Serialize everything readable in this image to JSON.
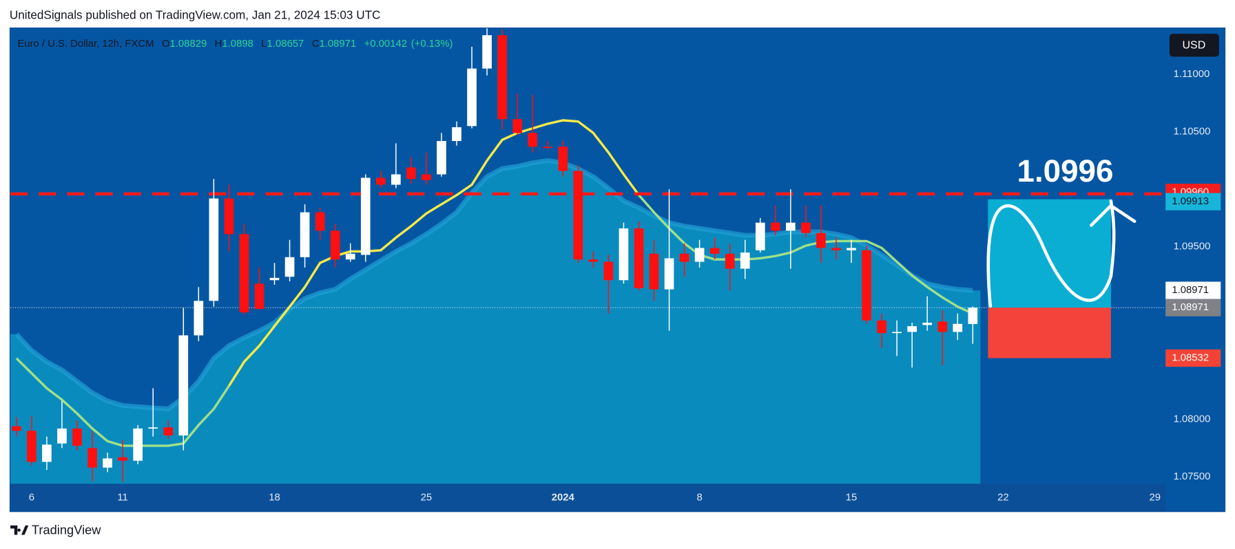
{
  "chart_data": {
    "type": "candlestick",
    "title": "UnitedSignals published on TradingView.com, Jan 21, 2024 15:03 UTC",
    "symbol": "Euro / U.S. Dollar, 12h, FXCM",
    "ohlc_letters": [
      "O",
      "H",
      "L",
      "C"
    ],
    "change": "+0.00142",
    "change_pct": "(+0.13%)",
    "currency": "USD",
    "footer": "TradingView",
    "up_color": "#ffffff",
    "down_color": "#ff1010",
    "open": [
      1.0794,
      1.079,
      1.0763,
      1.0779,
      1.0792,
      1.0775,
      1.0758,
      1.0767,
      1.0764,
      1.0792,
      1.0793,
      1.0786,
      1.0873,
      1.0903,
      1.0992,
      1.0961,
      1.0918,
      1.0921,
      1.0924,
      1.0941,
      1.098,
      1.0964,
      1.0939,
      1.0943,
      1.101,
      1.1004,
      1.1019,
      1.1013,
      1.1013,
      1.1042,
      1.1055,
      1.1105,
      1.1134,
      1.1061,
      1.1049,
      1.1037,
      1.1037,
      1.1016,
      1.0939,
      1.0937,
      1.0921,
      1.0966,
      1.0944,
      1.0913,
      1.0944,
      1.0937,
      1.0949,
      1.0944,
      1.0931,
      1.0947,
      1.0971,
      1.0964,
      1.0971,
      1.0962,
      1.0949,
      1.0947,
      1.0947,
      1.0886,
      1.0875,
      1.0876,
      1.0882,
      1.0885,
      1.0876,
      1.08829
    ],
    "high": [
      1.0802,
      1.0803,
      1.0785,
      1.0816,
      1.0799,
      1.079,
      1.0771,
      1.0782,
      1.0795,
      1.0827,
      1.0799,
      1.0897,
      1.0915,
      1.1009,
      1.1004,
      1.097,
      1.0932,
      1.0936,
      1.0956,
      1.0987,
      1.0984,
      1.097,
      1.0953,
      1.1013,
      1.1016,
      1.104,
      1.1028,
      1.1032,
      1.1049,
      1.1059,
      1.1124,
      1.114,
      1.1139,
      1.1083,
      1.1082,
      1.1042,
      1.1042,
      1.1021,
      1.0946,
      1.0943,
      1.0971,
      1.0972,
      1.0956,
      1.1,
      1.0953,
      1.0956,
      1.0958,
      1.0953,
      1.0956,
      1.0975,
      1.0986,
      1.1,
      1.0986,
      1.0986,
      1.0958,
      1.0956,
      1.0951,
      1.0892,
      1.0886,
      1.0884,
      1.0907,
      1.0895,
      1.0892,
      1.0898
    ],
    "low": [
      1.0785,
      1.076,
      1.0756,
      1.0775,
      1.0773,
      1.0746,
      1.0754,
      1.0746,
      1.0761,
      1.0785,
      1.0783,
      1.0773,
      1.0868,
      1.0898,
      1.0946,
      1.0891,
      1.0895,
      1.0917,
      1.092,
      1.0932,
      1.0956,
      1.0932,
      1.0937,
      1.0937,
      1.1001,
      1.1001,
      1.1005,
      1.1004,
      1.1011,
      1.1038,
      1.1053,
      1.1099,
      1.1052,
      1.1047,
      1.1032,
      1.1035,
      1.1011,
      1.0936,
      1.0932,
      1.0892,
      1.0918,
      1.0912,
      1.0903,
      1.0877,
      1.0924,
      1.0932,
      1.0939,
      1.0912,
      1.0922,
      1.0945,
      1.096,
      1.0931,
      1.0958,
      1.0936,
      1.0939,
      1.0936,
      1.0883,
      1.0862,
      1.0855,
      1.0845,
      1.0877,
      1.0847,
      1.0869,
      1.08657
    ],
    "close": [
      1.079,
      1.0763,
      1.0778,
      1.0792,
      1.0777,
      1.0758,
      1.0766,
      1.0764,
      1.0792,
      1.0793,
      1.0786,
      1.0873,
      1.0903,
      1.0992,
      1.0961,
      1.0893,
      1.0896,
      1.0923,
      1.0941,
      1.098,
      1.0964,
      1.0939,
      1.0944,
      1.101,
      1.1004,
      1.1013,
      1.1009,
      1.1008,
      1.1042,
      1.1054,
      1.1105,
      1.1134,
      1.1061,
      1.1049,
      1.1037,
      1.1036,
      1.1016,
      1.0939,
      1.0937,
      1.0921,
      1.0966,
      1.0914,
      1.0913,
      1.094,
      1.0937,
      1.0949,
      1.0944,
      1.0931,
      1.0945,
      1.0971,
      1.0964,
      1.0971,
      1.0962,
      1.0949,
      1.0947,
      1.0949,
      1.0886,
      1.0875,
      1.0876,
      1.0881,
      1.0884,
      1.0876,
      1.0883,
      1.08971
    ],
    "lines": [
      {
        "color": "#9fe08a",
        "values": [
          1.0853,
          1.084,
          1.0827,
          1.0817,
          1.0805,
          1.0792,
          1.0781,
          1.0777,
          1.0777,
          1.0777,
          1.0777,
          1.0779,
          1.0795,
          1.0809,
          1.0829,
          null,
          null,
          null,
          null,
          null,
          null,
          null,
          null,
          null,
          null,
          null,
          null,
          null,
          null,
          null,
          null,
          null,
          null,
          null,
          null,
          null,
          null,
          null,
          null,
          null,
          null,
          1.0995,
          1.098,
          1.0966,
          1.0953,
          1.0943,
          1.0939,
          1.0939,
          1.0939,
          1.094,
          1.0942,
          1.0945,
          1.0951,
          1.0954,
          1.0955,
          1.0955,
          1.0955,
          1.0949,
          1.0937,
          1.0925,
          1.0915,
          1.0906,
          1.0898,
          1.0892
        ]
      },
      {
        "color": "#f7ea48",
        "values": [
          null,
          null,
          null,
          null,
          null,
          null,
          null,
          null,
          null,
          null,
          null,
          null,
          null,
          null,
          1.0829,
          1.085,
          1.0864,
          1.0881,
          1.0898,
          1.0915,
          1.0936,
          1.0942,
          1.0946,
          1.0946,
          1.0947,
          1.0958,
          1.0968,
          1.0979,
          1.0987,
          1.0995,
          1.1004,
          1.1025,
          1.1043,
          1.1049,
          1.1053,
          1.1057,
          1.106,
          1.1059,
          1.1049,
          1.1032,
          1.1013,
          1.0995,
          null,
          null,
          null,
          null,
          null,
          null,
          null,
          null,
          null,
          null,
          null,
          null,
          null,
          null,
          null,
          null,
          null,
          null,
          null,
          null,
          null,
          null
        ]
      }
    ],
    "band": {
      "color": "#0a8bbd",
      "values": [
        1.0874,
        1.086,
        1.085,
        1.0843,
        1.0833,
        1.0823,
        1.0816,
        1.0812,
        1.0811,
        1.081,
        1.0809,
        1.0819,
        1.0833,
        1.0853,
        1.0864,
        1.0871,
        1.0877,
        1.0884,
        1.0896,
        1.0905,
        1.091,
        1.0913,
        1.0922,
        1.093,
        1.0938,
        1.0946,
        1.0953,
        1.0961,
        1.097,
        1.098,
        1.0997,
        1.1011,
        1.1018,
        1.102,
        1.1023,
        1.1025,
        1.1023,
        1.1018,
        1.1011,
        1.1001,
        1.099,
        1.0984,
        1.0977,
        1.0971,
        1.0968,
        1.0966,
        1.0964,
        1.0962,
        1.096,
        1.096,
        1.0961,
        1.0963,
        1.0963,
        1.0963,
        1.0961,
        1.0958,
        1.0951,
        1.0943,
        1.0934,
        1.0925,
        1.0918,
        1.0915,
        1.0913,
        1.0912
      ]
    },
    "hline": {
      "value": 1.0996,
      "label": "1.0996",
      "axis_label": "1.09960",
      "color": "#ff1a1a"
    },
    "position": {
      "entry": 1.08971,
      "entry_label": "1.08971",
      "target": 1.09913,
      "target_label": "1.09913",
      "stop": 1.08532,
      "stop_label": "1.08532",
      "target_color": "#0aaed2",
      "stop_color": "#f4433a"
    },
    "ylim": [
      1.0744,
      1.114
    ],
    "yticks": [
      {
        "value": 1.075,
        "label": "1.07500"
      },
      {
        "value": 1.08,
        "label": "1.08000"
      },
      {
        "value": 1.095,
        "label": "1.09500"
      },
      {
        "value": 1.105,
        "label": "1.10500"
      },
      {
        "value": 1.11,
        "label": "1.11000"
      }
    ],
    "xlim": [
      -0.4,
      75.7
    ],
    "xticks": [
      {
        "value": 1,
        "label": "6"
      },
      {
        "value": 7,
        "label": "11"
      },
      {
        "value": 17,
        "label": "18"
      },
      {
        "value": 27,
        "label": "25"
      },
      {
        "value": 36,
        "label": "2024"
      },
      {
        "value": 45,
        "label": "8"
      },
      {
        "value": 55,
        "label": "15"
      },
      {
        "value": 65,
        "label": "22"
      },
      {
        "value": 75,
        "label": "29"
      }
    ]
  }
}
